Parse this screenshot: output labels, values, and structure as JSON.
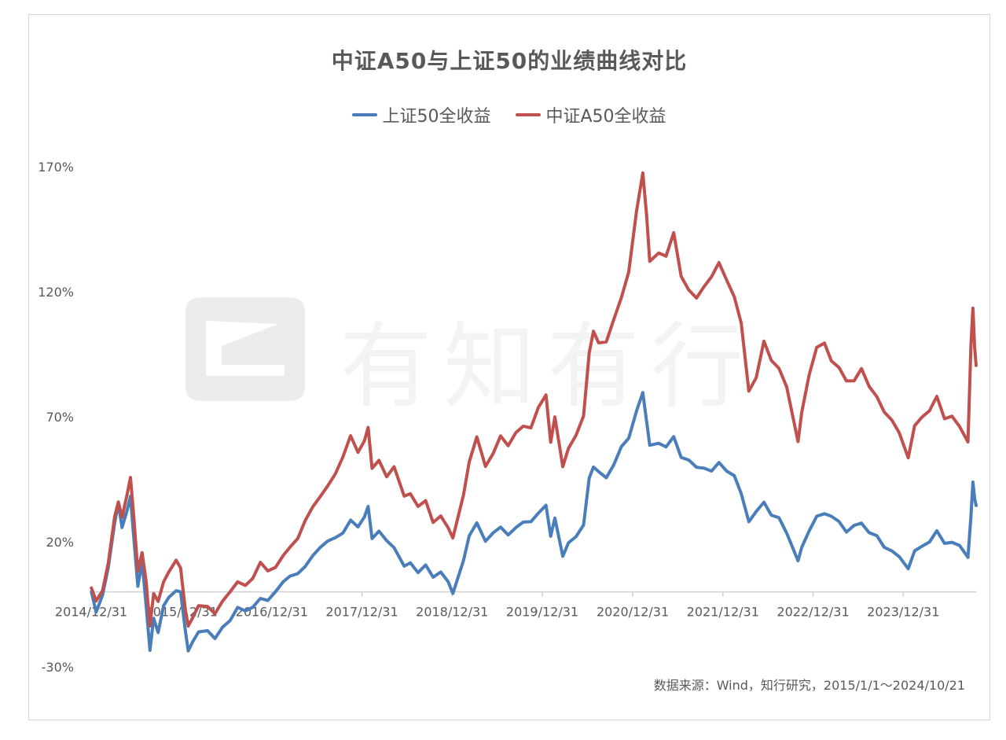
{
  "chart_data": {
    "type": "line",
    "title": "中证A50与上证50的业绩曲线对比",
    "xlabel": "",
    "ylabel": "",
    "y_unit": "%",
    "ylim": [
      -30,
      170
    ],
    "y_ticks": [
      -30,
      20,
      70,
      120,
      170
    ],
    "y_tick_labels": [
      "-30%",
      "20%",
      "70%",
      "120%",
      "170%"
    ],
    "x_tick_labels": [
      "2014/12/31",
      "2015/12/31",
      "2016/12/31",
      "2017/12/31",
      "2018/12/31",
      "2019/12/31",
      "2020/12/31",
      "2021/12/31",
      "2022/12/31",
      "2023/12/31"
    ],
    "xlim": [
      "2014/12/31",
      "2024/10/21"
    ],
    "legend_position": "top-center",
    "grid": false,
    "series": [
      {
        "name": "上证50全收益",
        "color": "#4a7ebb",
        "points": [
          [
            "2015-01-01",
            0
          ],
          [
            "2015-01-20",
            -8
          ],
          [
            "2015-02-15",
            -2
          ],
          [
            "2015-03-10",
            10
          ],
          [
            "2015-04-05",
            28
          ],
          [
            "2015-04-20",
            35
          ],
          [
            "2015-05-05",
            26
          ],
          [
            "2015-05-25",
            32
          ],
          [
            "2015-06-08",
            38
          ],
          [
            "2015-06-20",
            24
          ],
          [
            "2015-07-08",
            2
          ],
          [
            "2015-07-25",
            12
          ],
          [
            "2015-08-10",
            -5
          ],
          [
            "2015-08-26",
            -24
          ],
          [
            "2015-09-10",
            -10
          ],
          [
            "2015-09-28",
            -16
          ],
          [
            "2015-10-20",
            -6
          ],
          [
            "2015-11-10",
            -2
          ],
          [
            "2015-12-10",
            0
          ],
          [
            "2015-12-28",
            0
          ],
          [
            "2016-01-15",
            -14
          ],
          [
            "2016-01-28",
            -24
          ],
          [
            "2016-02-15",
            -20
          ],
          [
            "2016-03-10",
            -16
          ],
          [
            "2016-04-15",
            -16
          ],
          [
            "2016-05-15",
            -18
          ],
          [
            "2016-06-15",
            -14
          ],
          [
            "2016-07-15",
            -12
          ],
          [
            "2016-08-15",
            -6
          ],
          [
            "2016-09-15",
            -8
          ],
          [
            "2016-10-15",
            -6
          ],
          [
            "2016-11-15",
            -2
          ],
          [
            "2016-12-15",
            -4
          ],
          [
            "2017-01-15",
            0
          ],
          [
            "2017-02-15",
            4
          ],
          [
            "2017-03-15",
            6
          ],
          [
            "2017-04-15",
            8
          ],
          [
            "2017-05-15",
            10
          ],
          [
            "2017-06-15",
            14
          ],
          [
            "2017-07-15",
            18
          ],
          [
            "2017-08-15",
            20
          ],
          [
            "2017-09-15",
            22
          ],
          [
            "2017-10-15",
            24
          ],
          [
            "2017-11-15",
            28
          ],
          [
            "2017-12-15",
            26
          ],
          [
            "2018-01-10",
            30
          ],
          [
            "2018-01-25",
            34
          ],
          [
            "2018-02-10",
            22
          ],
          [
            "2018-03-10",
            24
          ],
          [
            "2018-04-10",
            20
          ],
          [
            "2018-05-10",
            18
          ],
          [
            "2018-06-20",
            10
          ],
          [
            "2018-07-15",
            12
          ],
          [
            "2018-08-15",
            8
          ],
          [
            "2018-09-15",
            10
          ],
          [
            "2018-10-15",
            6
          ],
          [
            "2018-11-15",
            8
          ],
          [
            "2018-12-15",
            4
          ],
          [
            "2019-01-03",
            0
          ],
          [
            "2019-02-15",
            12
          ],
          [
            "2019-03-10",
            22
          ],
          [
            "2019-04-10",
            28
          ],
          [
            "2019-05-15",
            20
          ],
          [
            "2019-06-15",
            24
          ],
          [
            "2019-07-15",
            26
          ],
          [
            "2019-08-15",
            22
          ],
          [
            "2019-09-15",
            26
          ],
          [
            "2019-10-15",
            28
          ],
          [
            "2019-11-15",
            28
          ],
          [
            "2019-12-15",
            32
          ],
          [
            "2020-01-15",
            34
          ],
          [
            "2020-02-03",
            22
          ],
          [
            "2020-02-20",
            30
          ],
          [
            "2020-03-23",
            14
          ],
          [
            "2020-04-15",
            20
          ],
          [
            "2020-05-15",
            22
          ],
          [
            "2020-06-15",
            26
          ],
          [
            "2020-07-08",
            46
          ],
          [
            "2020-07-25",
            50
          ],
          [
            "2020-08-15",
            48
          ],
          [
            "2020-09-15",
            46
          ],
          [
            "2020-10-15",
            50
          ],
          [
            "2020-11-15",
            58
          ],
          [
            "2020-12-15",
            62
          ],
          [
            "2021-01-15",
            72
          ],
          [
            "2021-02-10",
            80
          ],
          [
            "2021-02-25",
            68
          ],
          [
            "2021-03-10",
            58
          ],
          [
            "2021-04-15",
            60
          ],
          [
            "2021-05-15",
            58
          ],
          [
            "2021-06-15",
            62
          ],
          [
            "2021-07-15",
            54
          ],
          [
            "2021-08-15",
            52
          ],
          [
            "2021-09-15",
            50
          ],
          [
            "2021-10-15",
            50
          ],
          [
            "2021-11-15",
            48
          ],
          [
            "2021-12-15",
            52
          ],
          [
            "2022-01-15",
            48
          ],
          [
            "2022-02-15",
            46
          ],
          [
            "2022-03-15",
            40
          ],
          [
            "2022-04-15",
            28
          ],
          [
            "2022-05-15",
            32
          ],
          [
            "2022-06-15",
            36
          ],
          [
            "2022-07-15",
            30
          ],
          [
            "2022-08-15",
            30
          ],
          [
            "2022-09-15",
            24
          ],
          [
            "2022-10-31",
            12
          ],
          [
            "2022-11-15",
            18
          ],
          [
            "2022-12-15",
            24
          ],
          [
            "2023-01-15",
            30
          ],
          [
            "2023-02-15",
            32
          ],
          [
            "2023-03-15",
            30
          ],
          [
            "2023-04-15",
            28
          ],
          [
            "2023-05-15",
            24
          ],
          [
            "2023-06-15",
            26
          ],
          [
            "2023-07-15",
            28
          ],
          [
            "2023-08-15",
            24
          ],
          [
            "2023-09-15",
            22
          ],
          [
            "2023-10-15",
            18
          ],
          [
            "2023-11-15",
            16
          ],
          [
            "2023-12-15",
            14
          ],
          [
            "2024-01-20",
            10
          ],
          [
            "2024-02-15",
            16
          ],
          [
            "2024-03-15",
            18
          ],
          [
            "2024-04-15",
            20
          ],
          [
            "2024-05-15",
            24
          ],
          [
            "2024-06-15",
            20
          ],
          [
            "2024-07-15",
            20
          ],
          [
            "2024-08-15",
            18
          ],
          [
            "2024-09-18",
            14
          ],
          [
            "2024-09-30",
            30
          ],
          [
            "2024-10-08",
            44
          ],
          [
            "2024-10-15",
            38
          ],
          [
            "2024-10-21",
            34
          ]
        ]
      },
      {
        "name": "中证A50全收益",
        "color": "#c0504d",
        "points": [
          [
            "2015-01-01",
            2
          ],
          [
            "2015-01-20",
            -4
          ],
          [
            "2015-02-15",
            0
          ],
          [
            "2015-03-10",
            12
          ],
          [
            "2015-04-05",
            30
          ],
          [
            "2015-04-20",
            36
          ],
          [
            "2015-05-05",
            30
          ],
          [
            "2015-05-25",
            38
          ],
          [
            "2015-06-08",
            46
          ],
          [
            "2015-06-20",
            32
          ],
          [
            "2015-07-08",
            8
          ],
          [
            "2015-07-25",
            16
          ],
          [
            "2015-08-10",
            4
          ],
          [
            "2015-08-26",
            -14
          ],
          [
            "2015-09-10",
            0
          ],
          [
            "2015-09-28",
            -4
          ],
          [
            "2015-10-20",
            4
          ],
          [
            "2015-11-10",
            8
          ],
          [
            "2015-12-10",
            12
          ],
          [
            "2015-12-28",
            10
          ],
          [
            "2016-01-15",
            -6
          ],
          [
            "2016-01-28",
            -14
          ],
          [
            "2016-02-15",
            -10
          ],
          [
            "2016-03-10",
            -6
          ],
          [
            "2016-04-15",
            -6
          ],
          [
            "2016-05-15",
            -8
          ],
          [
            "2016-06-15",
            -4
          ],
          [
            "2016-07-15",
            0
          ],
          [
            "2016-08-15",
            4
          ],
          [
            "2016-09-15",
            2
          ],
          [
            "2016-10-15",
            6
          ],
          [
            "2016-11-15",
            12
          ],
          [
            "2016-12-15",
            8
          ],
          [
            "2017-01-15",
            10
          ],
          [
            "2017-02-15",
            14
          ],
          [
            "2017-03-15",
            18
          ],
          [
            "2017-04-15",
            22
          ],
          [
            "2017-05-15",
            28
          ],
          [
            "2017-06-15",
            34
          ],
          [
            "2017-07-15",
            38
          ],
          [
            "2017-08-15",
            42
          ],
          [
            "2017-09-15",
            48
          ],
          [
            "2017-10-15",
            54
          ],
          [
            "2017-11-15",
            62
          ],
          [
            "2017-12-15",
            56
          ],
          [
            "2018-01-10",
            60
          ],
          [
            "2018-01-25",
            66
          ],
          [
            "2018-02-10",
            50
          ],
          [
            "2018-03-10",
            52
          ],
          [
            "2018-04-10",
            46
          ],
          [
            "2018-05-10",
            50
          ],
          [
            "2018-06-20",
            38
          ],
          [
            "2018-07-15",
            40
          ],
          [
            "2018-08-15",
            34
          ],
          [
            "2018-09-15",
            36
          ],
          [
            "2018-10-15",
            28
          ],
          [
            "2018-11-15",
            30
          ],
          [
            "2018-12-15",
            26
          ],
          [
            "2019-01-03",
            22
          ],
          [
            "2019-02-15",
            38
          ],
          [
            "2019-03-10",
            52
          ],
          [
            "2019-04-10",
            62
          ],
          [
            "2019-05-15",
            50
          ],
          [
            "2019-06-15",
            56
          ],
          [
            "2019-07-15",
            62
          ],
          [
            "2019-08-15",
            58
          ],
          [
            "2019-09-15",
            64
          ],
          [
            "2019-10-15",
            66
          ],
          [
            "2019-11-15",
            66
          ],
          [
            "2019-12-15",
            74
          ],
          [
            "2020-01-15",
            78
          ],
          [
            "2020-02-03",
            60
          ],
          [
            "2020-02-20",
            70
          ],
          [
            "2020-03-23",
            50
          ],
          [
            "2020-04-15",
            58
          ],
          [
            "2020-05-15",
            62
          ],
          [
            "2020-06-15",
            70
          ],
          [
            "2020-07-08",
            96
          ],
          [
            "2020-07-25",
            104
          ],
          [
            "2020-08-15",
            100
          ],
          [
            "2020-09-15",
            100
          ],
          [
            "2020-10-15",
            108
          ],
          [
            "2020-11-15",
            118
          ],
          [
            "2020-12-15",
            128
          ],
          [
            "2021-01-15",
            152
          ],
          [
            "2021-02-10",
            168
          ],
          [
            "2021-02-25",
            150
          ],
          [
            "2021-03-10",
            132
          ],
          [
            "2021-04-15",
            136
          ],
          [
            "2021-05-15",
            134
          ],
          [
            "2021-06-15",
            144
          ],
          [
            "2021-07-15",
            126
          ],
          [
            "2021-08-15",
            120
          ],
          [
            "2021-09-15",
            118
          ],
          [
            "2021-10-15",
            122
          ],
          [
            "2021-11-15",
            126
          ],
          [
            "2021-12-15",
            132
          ],
          [
            "2022-01-15",
            124
          ],
          [
            "2022-02-15",
            118
          ],
          [
            "2022-03-15",
            108
          ],
          [
            "2022-04-15",
            80
          ],
          [
            "2022-05-15",
            86
          ],
          [
            "2022-06-15",
            100
          ],
          [
            "2022-07-15",
            92
          ],
          [
            "2022-08-15",
            90
          ],
          [
            "2022-09-15",
            82
          ],
          [
            "2022-10-31",
            60
          ],
          [
            "2022-11-15",
            72
          ],
          [
            "2022-12-15",
            86
          ],
          [
            "2023-01-15",
            98
          ],
          [
            "2023-02-15",
            100
          ],
          [
            "2023-03-15",
            92
          ],
          [
            "2023-04-15",
            90
          ],
          [
            "2023-05-15",
            84
          ],
          [
            "2023-06-15",
            84
          ],
          [
            "2023-07-15",
            90
          ],
          [
            "2023-08-15",
            82
          ],
          [
            "2023-09-15",
            78
          ],
          [
            "2023-10-15",
            72
          ],
          [
            "2023-11-15",
            68
          ],
          [
            "2023-12-15",
            64
          ],
          [
            "2024-01-20",
            54
          ],
          [
            "2024-02-15",
            66
          ],
          [
            "2024-03-15",
            70
          ],
          [
            "2024-04-15",
            72
          ],
          [
            "2024-05-15",
            78
          ],
          [
            "2024-06-15",
            70
          ],
          [
            "2024-07-15",
            70
          ],
          [
            "2024-08-15",
            66
          ],
          [
            "2024-09-18",
            60
          ],
          [
            "2024-09-30",
            98
          ],
          [
            "2024-10-08",
            114
          ],
          [
            "2024-10-15",
            98
          ],
          [
            "2024-10-21",
            90
          ]
        ]
      }
    ]
  },
  "source_text": "数据来源：Wind，知行研究，2015/1/1～2024/10/21",
  "watermark": {
    "icon": "logo-mark-icon",
    "text": "有知有行"
  }
}
